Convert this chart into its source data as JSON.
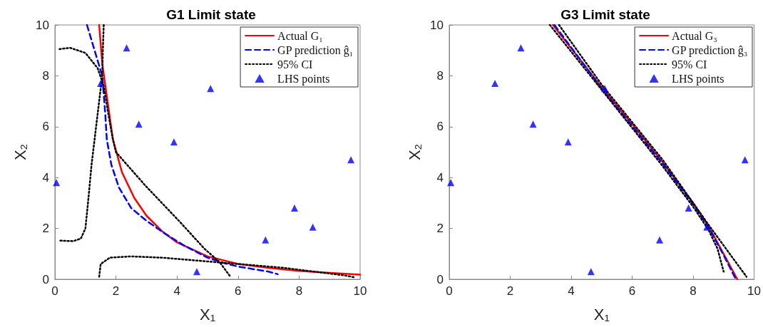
{
  "chart_data": [
    {
      "type": "line",
      "title": "G1 Limit state",
      "xlabel": "X₁",
      "ylabel": "X₂",
      "xlim": [
        0,
        10
      ],
      "ylim": [
        0,
        10
      ],
      "xticks": [
        0,
        2,
        4,
        6,
        8,
        10
      ],
      "yticks": [
        0,
        2,
        4,
        6,
        8,
        10
      ],
      "grid": false,
      "legend": "top right",
      "series": [
        {
          "name": "Actual G₁",
          "type": "line",
          "color": "#ff0000",
          "line_style": "solid",
          "marker": "none",
          "x": [
            1.45,
            1.55,
            1.7,
            1.9,
            2.2,
            2.6,
            3,
            3.5,
            4,
            5,
            6,
            7,
            8,
            9,
            10
          ],
          "values": [
            10,
            8.5,
            7.2,
            5.5,
            4.2,
            3.2,
            2.5,
            1.9,
            1.45,
            0.9,
            0.6,
            0.45,
            0.33,
            0.25,
            0.18
          ]
        },
        {
          "name": "GP prediction ĝ₁",
          "type": "line",
          "color": "#0000ff",
          "line_style": "dashed",
          "marker": "none",
          "x": [
            1.05,
            1.3,
            1.55,
            1.65,
            1.7,
            1.85,
            2.1,
            2.5,
            3,
            3.6,
            4.2,
            5,
            5.5,
            6,
            7,
            7.3
          ],
          "values": [
            10,
            9,
            8,
            6.5,
            5.5,
            4.5,
            3.6,
            2.8,
            2.3,
            1.8,
            1.35,
            0.85,
            0.65,
            0.5,
            0.3,
            0.2
          ]
        },
        {
          "name": "95% CI",
          "type": "line",
          "color": "#000000",
          "line_style": "dotted",
          "marker": "none",
          "x": [
            0.15,
            0.5,
            1.0,
            1.4,
            1.6,
            1.75,
            1.9,
            2.0,
            2.95,
            4.1,
            4.9,
            5.4,
            5.75,
            null,
            1.6,
            1.57,
            1.55,
            1.45,
            1.35,
            1.3,
            1.2,
            1.1,
            1.0,
            0.85,
            0.6,
            0.15,
            null,
            1.45,
            1.5,
            1.8,
            2.5,
            3.5,
            4.5,
            5.5,
            6.5,
            7.5,
            8.5,
            9.5,
            9.8
          ],
          "values": [
            9.05,
            9.1,
            8.9,
            8.3,
            7.6,
            6.5,
            5.5,
            5.0,
            3.7,
            2.25,
            1.2,
            0.67,
            0.1,
            null,
            10,
            9,
            8,
            7,
            6,
            5.5,
            4.5,
            3.2,
            2.0,
            1.6,
            1.5,
            1.52,
            null,
            0.1,
            0.6,
            0.85,
            0.9,
            0.85,
            0.75,
            0.65,
            0.55,
            0.45,
            0.3,
            0.15,
            0.08
          ]
        },
        {
          "name": "LHS points",
          "type": "scatter",
          "color": "#0000ff",
          "marker": "triangle",
          "x": [
            0.05,
            1.5,
            2.35,
            2.75,
            3.9,
            4.65,
            5.1,
            6.9,
            7.85,
            8.45,
            9.7
          ],
          "values": [
            3.8,
            7.7,
            9.1,
            6.1,
            5.4,
            0.3,
            7.5,
            1.55,
            2.8,
            2.05,
            4.7
          ]
        }
      ]
    },
    {
      "type": "line",
      "title": "G3 Limit state",
      "xlabel": "X₁",
      "ylabel": "X₂",
      "xlim": [
        0,
        10
      ],
      "ylim": [
        0,
        10
      ],
      "xticks": [
        0,
        2,
        4,
        6,
        8,
        10
      ],
      "yticks": [
        0,
        2,
        4,
        6,
        8,
        10
      ],
      "grid": false,
      "legend": "top right",
      "series": [
        {
          "name": "Actual G₃",
          "type": "line",
          "color": "#ff0000",
          "line_style": "solid",
          "marker": "none",
          "x": [
            3.4,
            5,
            6,
            7,
            8,
            8.5,
            9,
            9.45
          ],
          "values": [
            10,
            7.55,
            6.1,
            4.6,
            3.0,
            2.1,
            1.0,
            0
          ]
        },
        {
          "name": "GP prediction ĝ₃",
          "type": "line",
          "color": "#0000ff",
          "line_style": "dashed",
          "marker": "none",
          "x": [
            3.45,
            5,
            7,
            8,
            8.5,
            9.0,
            9.4
          ],
          "values": [
            10,
            7.5,
            4.55,
            2.95,
            2.05,
            0.95,
            0
          ]
        },
        {
          "name": "95% CI",
          "type": "line",
          "color": "#000000",
          "line_style": "dotted",
          "marker": "none",
          "x": [
            3.3,
            5,
            7,
            8,
            8.5,
            8.8,
            9.0,
            null,
            3.6,
            5,
            7,
            8,
            8.5,
            9.2,
            9.75
          ],
          "values": [
            10,
            7.45,
            4.45,
            2.85,
            1.95,
            1.2,
            0.3,
            null,
            10,
            7.65,
            4.7,
            3.0,
            2.15,
            1.0,
            0.1
          ]
        },
        {
          "name": "LHS points",
          "type": "scatter",
          "color": "#0000ff",
          "marker": "triangle",
          "x": [
            0.05,
            1.5,
            2.35,
            2.75,
            3.9,
            4.65,
            5.1,
            6.9,
            7.85,
            8.45,
            9.7
          ],
          "values": [
            3.8,
            7.7,
            9.1,
            6.1,
            5.4,
            0.3,
            7.5,
            1.55,
            2.8,
            2.05,
            4.7
          ]
        }
      ]
    }
  ]
}
